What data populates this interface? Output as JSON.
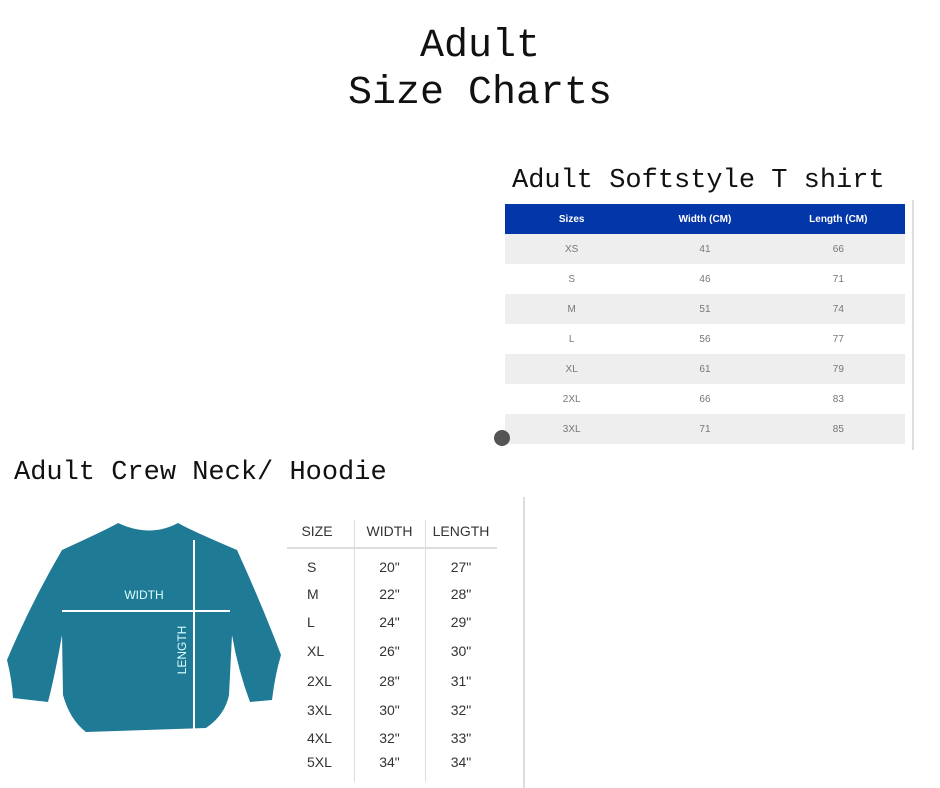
{
  "title": {
    "line1": "Adult",
    "line2": "Size Charts"
  },
  "softstyle": {
    "heading": "Adult Softstyle T shirt",
    "columns": [
      "Sizes",
      "Width (CM)",
      "Length (CM)"
    ],
    "rows": [
      [
        "XS",
        "41",
        "66"
      ],
      [
        "S",
        "46",
        "71"
      ],
      [
        "M",
        "51",
        "74"
      ],
      [
        "L",
        "56",
        "77"
      ],
      [
        "XL",
        "61",
        "79"
      ],
      [
        "2XL",
        "66",
        "83"
      ],
      [
        "3XL",
        "71",
        "85"
      ]
    ],
    "header_color": "#0336a8"
  },
  "crewneck": {
    "heading": "Adult Crew Neck/ Hoodie",
    "columns": [
      "SIZE",
      "WIDTH",
      "LENGTH"
    ],
    "rows": [
      [
        "S",
        "20\"",
        "27\""
      ],
      [
        "M",
        "22\"",
        "28\""
      ],
      [
        "L",
        "24\"",
        "29\""
      ],
      [
        "XL",
        "26\"",
        "30\""
      ],
      [
        "2XL",
        "28\"",
        "31\""
      ],
      [
        "3XL",
        "30\"",
        "32\""
      ],
      [
        "4XL",
        "32\"",
        "33\""
      ],
      [
        "5XL",
        "34\"",
        "34\""
      ]
    ],
    "diagram": {
      "width_label": "WIDTH",
      "length_label": "LENGTH",
      "garment_color": "#1f7a96"
    }
  }
}
